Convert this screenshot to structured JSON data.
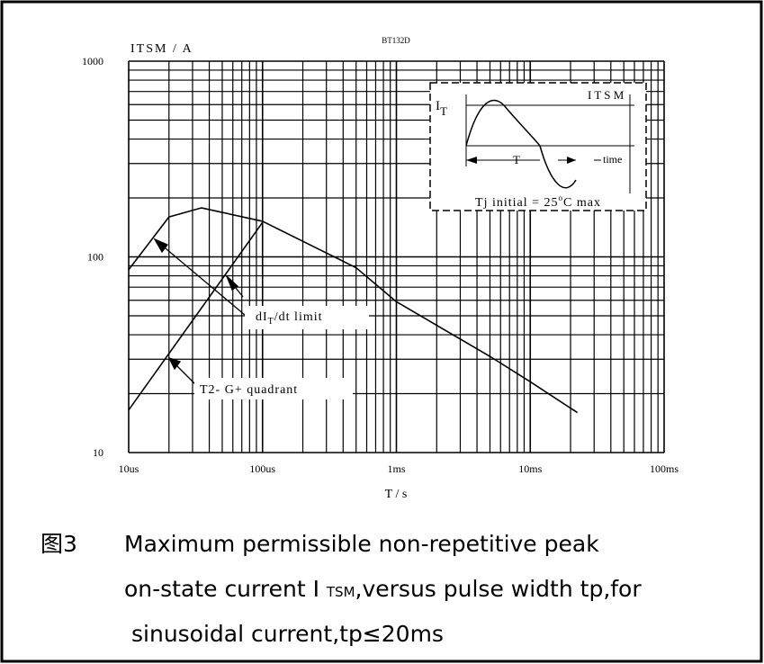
{
  "chart_data": {
    "type": "line",
    "title": "BT132D",
    "y_label": "ITSM / A",
    "x_label": "T / s",
    "log_x": true,
    "log_y": true,
    "grid": true,
    "minor_grid": true,
    "xlim": [
      1e-05,
      0.1
    ],
    "ylim": [
      10,
      1000
    ],
    "xticks": [
      {
        "value": 1e-05,
        "label": "10us"
      },
      {
        "value": 0.0001,
        "label": "100us"
      },
      {
        "value": 0.001,
        "label": "1ms"
      },
      {
        "value": 0.01,
        "label": "10ms"
      },
      {
        "value": 0.1,
        "label": "100ms"
      }
    ],
    "yticks": [
      10,
      100,
      1000
    ],
    "series": [
      {
        "color": "#000000",
        "x": [
          1e-05,
          2e-05,
          3.5e-05,
          0.0001,
          0.0005,
          0.001,
          0.005,
          0.01,
          0.0225
        ],
        "values": [
          86,
          160,
          178,
          152,
          88,
          59,
          31,
          23,
          16
        ]
      },
      {
        "color": "#000000",
        "x": [
          1e-05,
          0.0001
        ],
        "values": [
          16.5,
          150
        ]
      }
    ],
    "annotations": {
      "didt": [
        "dI",
        "T",
        "/dt limit"
      ],
      "quadrant": "T2- G+ quadrant"
    },
    "inset": {
      "axis_label": [
        "I",
        "T"
      ],
      "itsm": "I T S M",
      "period": "T",
      "time": "time",
      "condition": [
        "Tj initial = 25",
        "o",
        "C max"
      ]
    },
    "caption": {
      "label": "图3",
      "line1": "Maximum permissible non-repetitive peak",
      "line2": [
        "on-state current I ",
        "TSM",
        ",versus pulse width tp,for"
      ],
      "line3": "sinusoidal current,tp≤20ms"
    }
  }
}
